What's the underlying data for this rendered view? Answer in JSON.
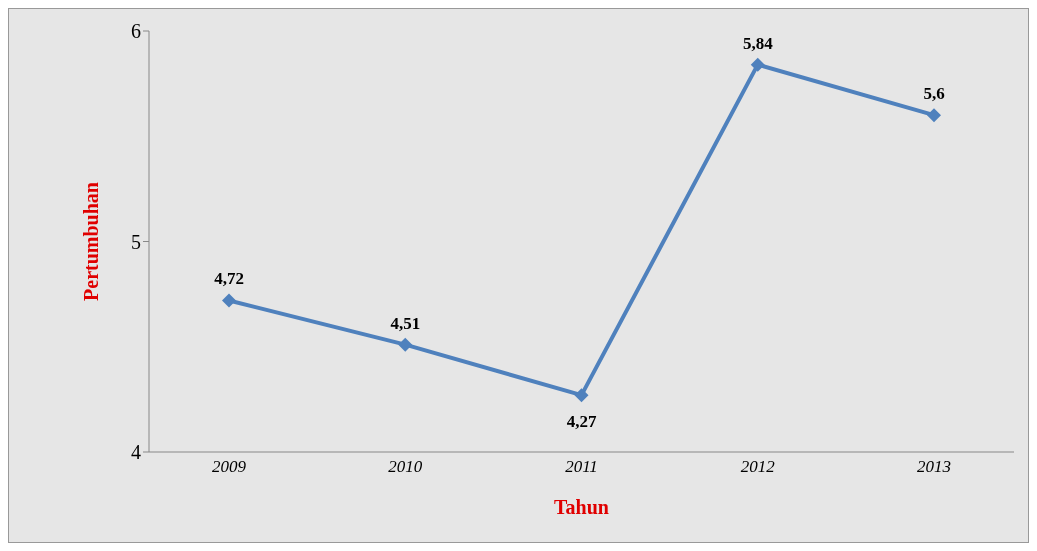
{
  "chart_data": {
    "type": "line",
    "xlabel": "Tahun",
    "ylabel": "Pertumbuhan",
    "categories": [
      "2009",
      "2010",
      "2011",
      "2012",
      "2013"
    ],
    "series": [
      {
        "color": "#4f81bd",
        "values": [
          4.72,
          4.51,
          4.27,
          5.84,
          5.6
        ],
        "value_labels": [
          "4,72",
          "4,51",
          "4,27",
          "5,84",
          "5,6"
        ]
      }
    ],
    "ylim": [
      4,
      6
    ],
    "yticks": [
      4,
      5,
      6
    ],
    "grid": false,
    "legend": false,
    "marker": "diamond",
    "line_style": "solid"
  }
}
